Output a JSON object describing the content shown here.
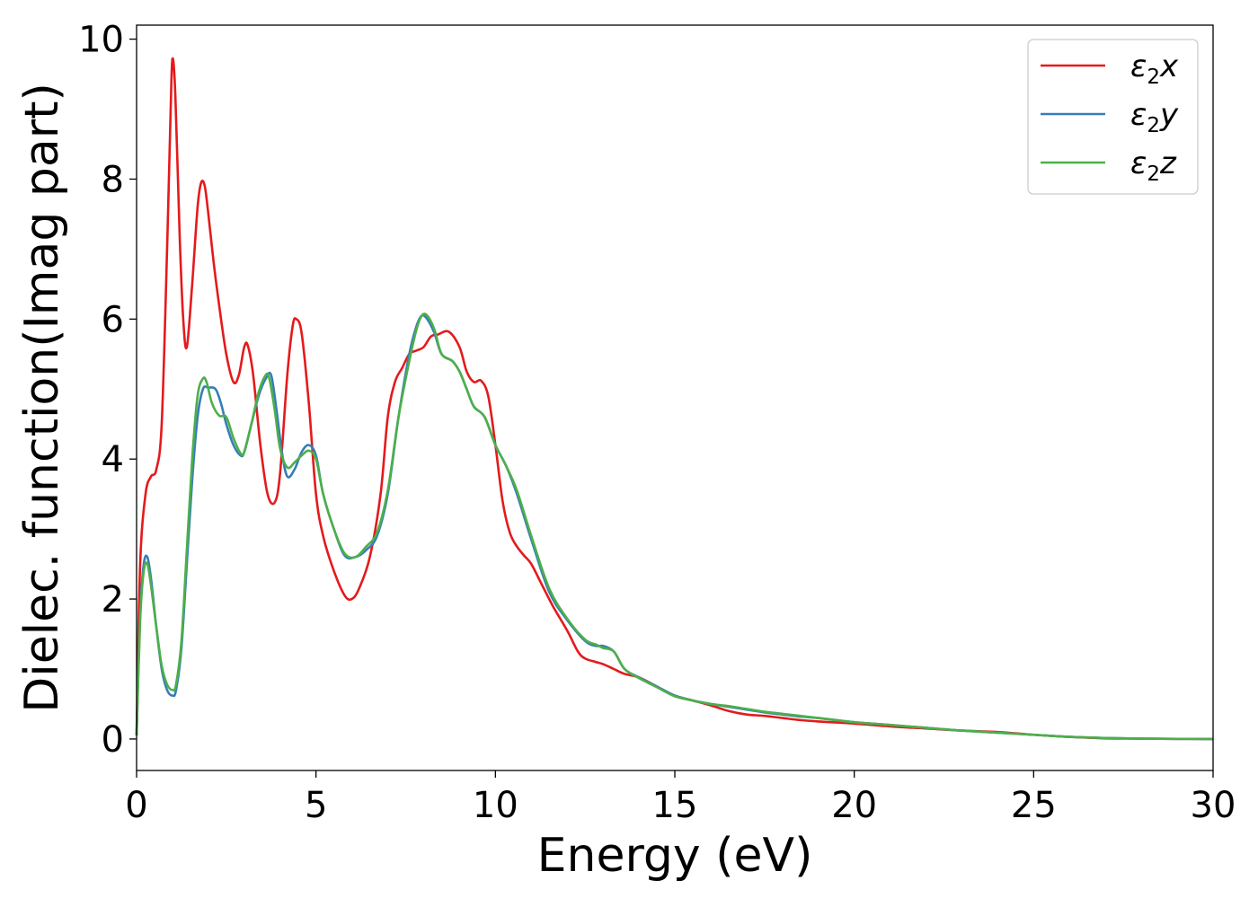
{
  "chart_data": {
    "type": "line",
    "title": "",
    "xlabel": "Energy (eV)",
    "ylabel": "Dielec. function(Imag part)",
    "xlim": [
      0,
      30
    ],
    "ylim": [
      -0.45,
      10.2
    ],
    "xticks": [
      0,
      5,
      10,
      15,
      20,
      25,
      30
    ],
    "yticks": [
      0,
      2,
      4,
      6,
      8,
      10
    ],
    "grid": false,
    "legend_position": "top-right",
    "series": [
      {
        "name": "ε2x",
        "legend_base": "ε",
        "legend_sub": "2",
        "legend_var": "x",
        "color": "#e41a1c",
        "x": [
          0,
          0.1,
          0.25,
          0.4,
          0.55,
          0.7,
          0.85,
          0.95,
          1.0,
          1.08,
          1.2,
          1.3,
          1.4,
          1.55,
          1.7,
          1.8,
          1.9,
          2.0,
          2.15,
          2.3,
          2.5,
          2.7,
          2.85,
          3.0,
          3.1,
          3.25,
          3.45,
          3.65,
          3.85,
          4.0,
          4.2,
          4.35,
          4.45,
          4.6,
          4.8,
          5.0,
          5.2,
          5.5,
          5.8,
          6.0,
          6.2,
          6.5,
          6.8,
          7.0,
          7.2,
          7.4,
          7.6,
          7.8,
          8.0,
          8.2,
          8.4,
          8.7,
          9.0,
          9.2,
          9.4,
          9.6,
          9.8,
          10.0,
          10.2,
          10.4,
          10.6,
          10.8,
          11.0,
          11.3,
          11.6,
          12.0,
          12.3,
          12.5,
          12.8,
          13.0,
          13.3,
          13.6,
          14.0,
          14.5,
          15.0,
          15.5,
          16.0,
          16.5,
          17.0,
          17.5,
          18.0,
          18.5,
          19.0,
          20.0,
          21.0,
          22.0,
          23.0,
          24.0,
          25.0,
          26.0,
          27.0,
          28.0,
          29.0,
          30.0
        ],
        "y": [
          0.05,
          2.5,
          3.5,
          3.75,
          3.85,
          4.5,
          7.0,
          9.0,
          9.72,
          9.2,
          7.2,
          6.0,
          5.6,
          6.5,
          7.6,
          7.95,
          7.9,
          7.5,
          6.8,
          6.2,
          5.5,
          5.1,
          5.2,
          5.6,
          5.62,
          5.2,
          4.2,
          3.5,
          3.38,
          3.8,
          5.2,
          5.9,
          6.0,
          5.8,
          4.8,
          3.5,
          2.9,
          2.4,
          2.05,
          2.0,
          2.15,
          2.6,
          3.5,
          4.6,
          5.1,
          5.3,
          5.5,
          5.55,
          5.6,
          5.75,
          5.78,
          5.82,
          5.6,
          5.25,
          5.1,
          5.12,
          4.9,
          4.2,
          3.4,
          2.95,
          2.75,
          2.62,
          2.5,
          2.2,
          1.9,
          1.55,
          1.25,
          1.15,
          1.1,
          1.07,
          1.0,
          0.93,
          0.88,
          0.75,
          0.62,
          0.55,
          0.48,
          0.4,
          0.35,
          0.33,
          0.3,
          0.27,
          0.25,
          0.22,
          0.18,
          0.15,
          0.12,
          0.1,
          0.06,
          0.03,
          0.01,
          0.005,
          0.002,
          0.0
        ]
      },
      {
        "name": "ε2y",
        "legend_base": "ε",
        "legend_sub": "2",
        "legend_var": "y",
        "color": "#377eb8",
        "x": [
          0,
          0.1,
          0.2,
          0.3,
          0.4,
          0.55,
          0.7,
          0.85,
          1.0,
          1.1,
          1.25,
          1.4,
          1.55,
          1.7,
          1.85,
          2.0,
          2.2,
          2.35,
          2.5,
          2.7,
          2.9,
          3.0,
          3.2,
          3.4,
          3.6,
          3.75,
          3.9,
          4.05,
          4.2,
          4.4,
          4.6,
          4.8,
          5.0,
          5.2,
          5.5,
          5.8,
          6.1,
          6.4,
          6.7,
          7.0,
          7.3,
          7.6,
          7.8,
          7.95,
          8.1,
          8.3,
          8.5,
          8.8,
          9.0,
          9.2,
          9.4,
          9.7,
          10.0,
          10.3,
          10.6,
          11.0,
          11.5,
          12.0,
          12.5,
          12.8,
          13.0,
          13.3,
          13.6,
          14.0,
          14.5,
          15.0,
          15.5,
          16.0,
          16.5,
          17.0,
          17.5,
          18.0,
          18.5,
          19.0,
          20.0,
          21.0,
          22.0,
          23.0,
          24.0,
          25.0,
          26.0,
          27.0,
          28.0,
          29.0,
          30.0
        ],
        "y": [
          0.05,
          1.8,
          2.5,
          2.6,
          2.3,
          1.6,
          1.0,
          0.7,
          0.62,
          0.7,
          1.3,
          2.5,
          3.7,
          4.6,
          5.0,
          5.02,
          5.0,
          4.8,
          4.5,
          4.2,
          4.05,
          4.1,
          4.5,
          4.9,
          5.15,
          5.2,
          4.7,
          4.1,
          3.75,
          3.85,
          4.1,
          4.2,
          4.05,
          3.5,
          3.0,
          2.62,
          2.6,
          2.7,
          2.9,
          3.5,
          4.6,
          5.5,
          5.9,
          6.05,
          6.0,
          5.8,
          5.5,
          5.4,
          5.25,
          5.0,
          4.75,
          4.6,
          4.2,
          3.9,
          3.5,
          2.85,
          2.1,
          1.7,
          1.4,
          1.33,
          1.33,
          1.25,
          1.0,
          0.88,
          0.75,
          0.62,
          0.55,
          0.5,
          0.46,
          0.42,
          0.38,
          0.35,
          0.32,
          0.3,
          0.24,
          0.2,
          0.16,
          0.12,
          0.09,
          0.06,
          0.03,
          0.015,
          0.005,
          0.002,
          0.0
        ]
      },
      {
        "name": "ε2z",
        "legend_base": "ε",
        "legend_sub": "2",
        "legend_var": "z",
        "color": "#4daf4a",
        "x": [
          0,
          0.1,
          0.2,
          0.3,
          0.4,
          0.55,
          0.7,
          0.85,
          1.0,
          1.1,
          1.25,
          1.4,
          1.55,
          1.7,
          1.85,
          1.95,
          2.1,
          2.3,
          2.5,
          2.7,
          2.9,
          3.0,
          3.2,
          3.4,
          3.6,
          3.7,
          3.85,
          4.0,
          4.2,
          4.4,
          4.6,
          4.8,
          5.0,
          5.2,
          5.5,
          5.8,
          6.1,
          6.4,
          6.7,
          7.0,
          7.3,
          7.6,
          7.8,
          7.95,
          8.1,
          8.3,
          8.5,
          8.8,
          9.0,
          9.2,
          9.4,
          9.7,
          10.0,
          10.3,
          10.6,
          11.0,
          11.5,
          12.0,
          12.5,
          12.8,
          13.0,
          13.3,
          13.6,
          14.0,
          14.5,
          15.0,
          15.5,
          16.0,
          16.5,
          17.0,
          17.5,
          18.0,
          18.5,
          19.0,
          20.0,
          21.0,
          22.0,
          23.0,
          24.0,
          25.0,
          26.0,
          27.0,
          28.0,
          29.0,
          30.0
        ],
        "y": [
          0.05,
          1.7,
          2.4,
          2.5,
          2.2,
          1.6,
          1.05,
          0.78,
          0.7,
          0.78,
          1.4,
          2.7,
          4.0,
          4.9,
          5.15,
          5.1,
          4.8,
          4.62,
          4.6,
          4.3,
          4.08,
          4.1,
          4.5,
          4.95,
          5.2,
          5.15,
          4.7,
          4.15,
          3.88,
          3.95,
          4.05,
          4.12,
          4.0,
          3.5,
          3.0,
          2.65,
          2.6,
          2.75,
          2.95,
          3.55,
          4.6,
          5.4,
          5.85,
          6.05,
          6.05,
          5.85,
          5.5,
          5.4,
          5.25,
          5.0,
          4.75,
          4.6,
          4.2,
          3.9,
          3.55,
          2.9,
          2.15,
          1.72,
          1.42,
          1.35,
          1.3,
          1.25,
          1.0,
          0.87,
          0.74,
          0.61,
          0.55,
          0.5,
          0.47,
          0.43,
          0.39,
          0.36,
          0.33,
          0.3,
          0.24,
          0.2,
          0.16,
          0.12,
          0.09,
          0.06,
          0.03,
          0.015,
          0.005,
          0.002,
          0.0
        ]
      }
    ]
  }
}
